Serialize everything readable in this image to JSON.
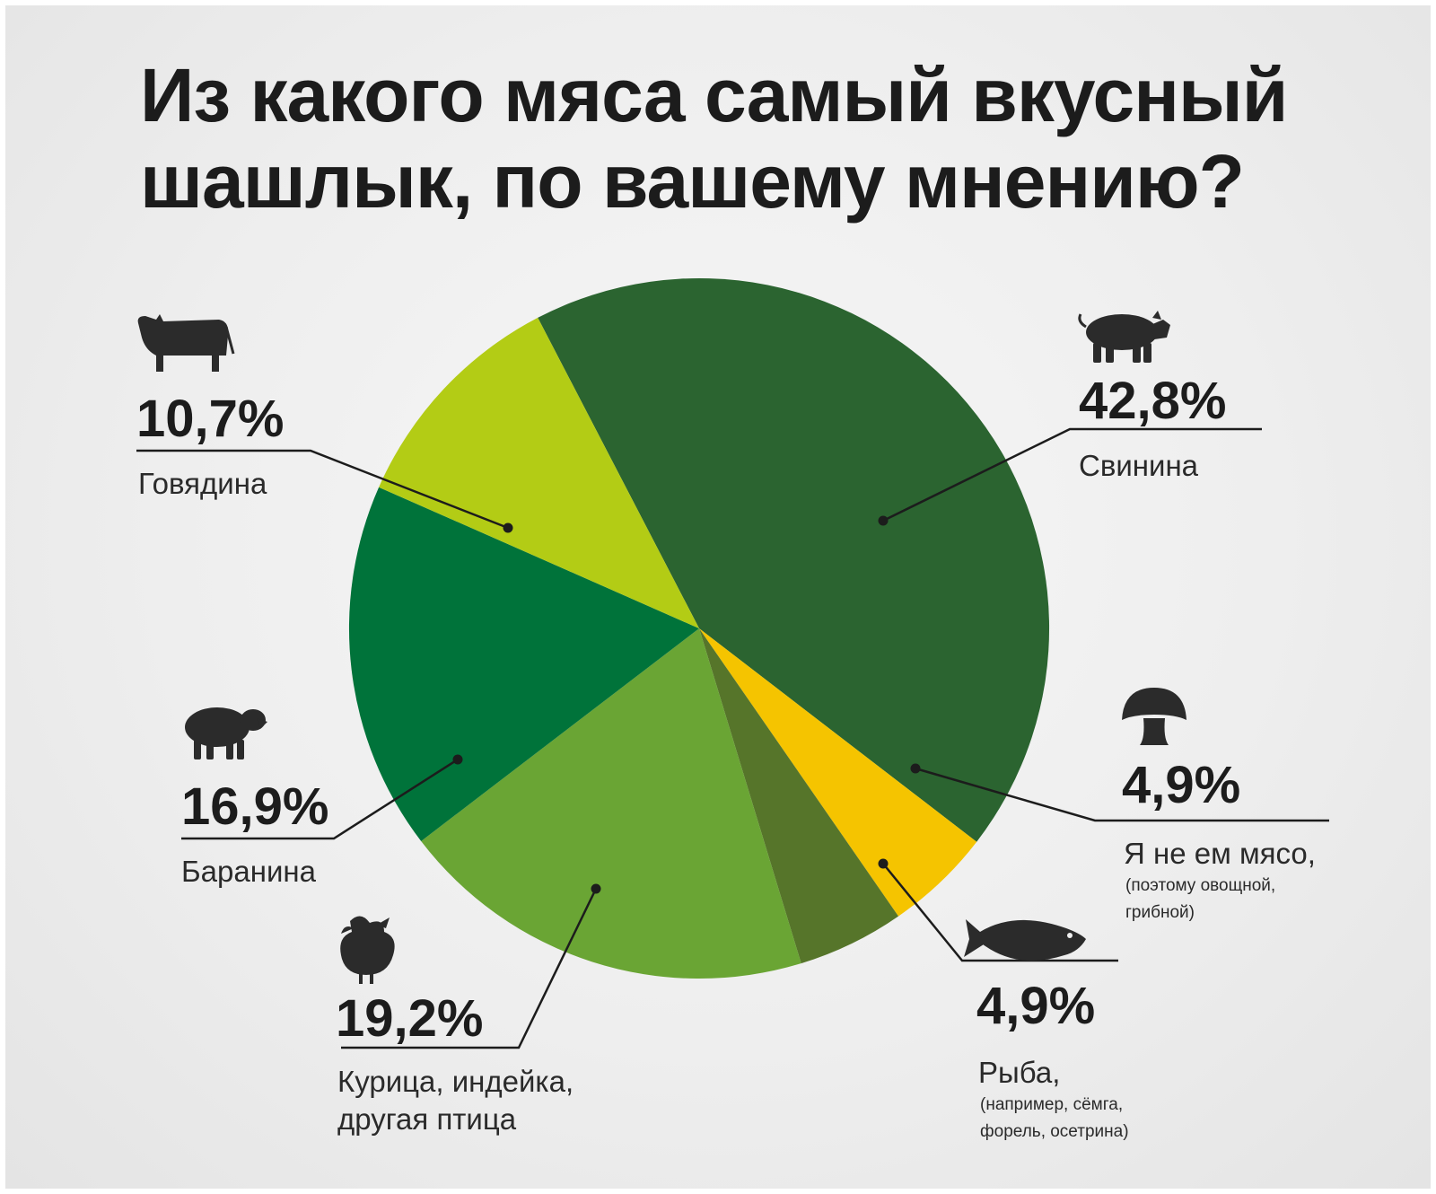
{
  "title_lines": [
    "Из какого мяса самый вкусный",
    "шашлык, по вашему мнению?"
  ],
  "chart_data": {
    "type": "pie",
    "title": "Из какого мяса самый вкусный шашлык, по вашему мнению?",
    "slices": [
      {
        "value": 42.8,
        "value_label": "42,8%",
        "label_lines": [
          "Свинина"
        ],
        "note_lines": [],
        "color": "#2b6430",
        "icon": "pig-icon"
      },
      {
        "value": 4.9,
        "value_label": "4,9%",
        "label_lines": [
          "Я не ем мясо,"
        ],
        "note_lines": [
          "(поэтому овощной,",
          "грибной)"
        ],
        "color": "#f5c400",
        "icon": "mushroom-icon"
      },
      {
        "value": 4.9,
        "value_label": "4,9%",
        "label_lines": [
          "Рыба,"
        ],
        "note_lines": [
          "(например, сёмга,",
          "форель, осетрина)"
        ],
        "color": "#56752a",
        "icon": "fish-icon"
      },
      {
        "value": 19.2,
        "value_label": "19,2%",
        "label_lines": [
          "Курица, индейка,",
          "другая птица"
        ],
        "note_lines": [],
        "color": "#6aa534",
        "icon": "rooster-icon"
      },
      {
        "value": 16.9,
        "value_label": "16,9%",
        "label_lines": [
          "Баранина"
        ],
        "note_lines": [],
        "color": "#00733a",
        "icon": "sheep-icon"
      },
      {
        "value": 10.7,
        "value_label": "10,7%",
        "label_lines": [
          "Говядина"
        ],
        "note_lines": [],
        "color": "#b3cc15",
        "icon": "cow-icon"
      }
    ]
  }
}
